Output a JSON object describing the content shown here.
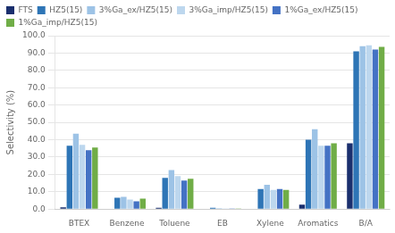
{
  "chart_data": {
    "type": "bar",
    "categories": [
      "BTEX",
      "Benzene",
      "Toluene",
      "EB",
      "Xylene",
      "Aromatics",
      "B/A"
    ],
    "series": [
      {
        "name": "FTS",
        "color": "#1a2f6e",
        "values": [
          1.0,
          0.0,
          0.8,
          0.0,
          0.0,
          2.5,
          38.0
        ]
      },
      {
        "name": "HZ5(15)",
        "color": "#2E75B6",
        "values": [
          36.5,
          6.5,
          18.0,
          0.7,
          11.5,
          40.0,
          91.0
        ]
      },
      {
        "name": "3%Ga_ex/HZ5(15)",
        "color": "#9DC3E6",
        "values": [
          43.5,
          7.0,
          22.5,
          0.5,
          14.0,
          46.0,
          94.0
        ]
      },
      {
        "name": "3%Ga_imp/HZ5(15)",
        "color": "#BDD7EE",
        "values": [
          37.0,
          5.5,
          19.0,
          0.3,
          11.0,
          36.5,
          94.5
        ]
      },
      {
        "name": "1%Ga_ex/HZ5(15)",
        "color": "#4472C4",
        "values": [
          34.0,
          4.5,
          16.5,
          0.3,
          11.5,
          36.5,
          92.0
        ]
      },
      {
        "name": "1%Ga_imp/HZ5(15)",
        "color": "#70AD47",
        "values": [
          35.5,
          6.0,
          17.5,
          0.3,
          11.0,
          38.0,
          93.5
        ]
      }
    ],
    "ylabel": "Selectivity (%)",
    "ylim": [
      0,
      100
    ],
    "yticks": [
      {
        "value": 0,
        "label": "0.0"
      },
      {
        "value": 10,
        "label": "10.0"
      },
      {
        "value": 20,
        "label": "20.0"
      },
      {
        "value": 30,
        "label": "30.0"
      },
      {
        "value": 40,
        "label": "40.0"
      },
      {
        "value": 50,
        "label": "50.0"
      },
      {
        "value": 60,
        "label": "60.0"
      },
      {
        "value": 70,
        "label": "70.0"
      },
      {
        "value": 80,
        "label": "80.0"
      },
      {
        "value": 90,
        "label": "90.0"
      },
      {
        "value": 100,
        "label": "100.0"
      }
    ],
    "grid": true,
    "legend": "upper left"
  }
}
